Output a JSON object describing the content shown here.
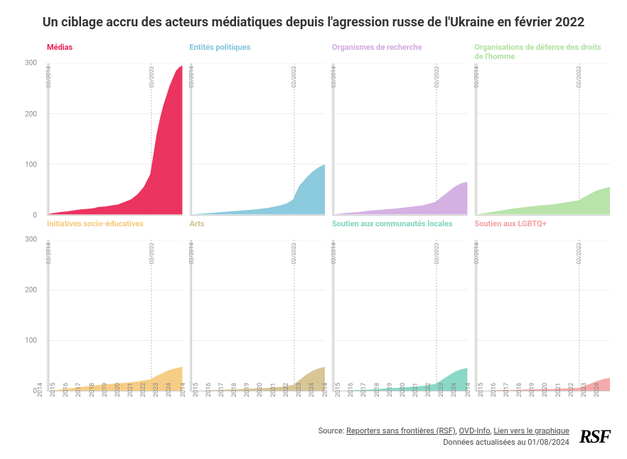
{
  "title": "Un ciblage accru des acteurs médiatiques depuis l'agression russe de l'Ukraine en février 2022",
  "layout": {
    "cols": 4,
    "rows": 2
  },
  "y": {
    "min": 0,
    "max": 300,
    "ticks": [
      0,
      100,
      200,
      300
    ]
  },
  "x": {
    "years": [
      2014,
      2015,
      2016,
      2017,
      2018,
      2019,
      2020,
      2021,
      2022,
      2023,
      2024
    ],
    "min": 2014,
    "max": 2024.5
  },
  "event_lines": [
    {
      "x": 2014.083,
      "label": "02/2014",
      "style": "solid"
    },
    {
      "x": 2022.083,
      "label": "02/2022",
      "style": "dashed"
    }
  ],
  "panels": [
    {
      "id": "medias",
      "title": "Médias",
      "color": "#e91e4e",
      "points": [
        [
          2014,
          0
        ],
        [
          2014.25,
          2
        ],
        [
          2014.5,
          3
        ],
        [
          2014.75,
          4
        ],
        [
          2015,
          5
        ],
        [
          2015.5,
          6
        ],
        [
          2016,
          8
        ],
        [
          2016.5,
          10
        ],
        [
          2017,
          11
        ],
        [
          2017.5,
          12
        ],
        [
          2018,
          15
        ],
        [
          2018.5,
          16
        ],
        [
          2019,
          18
        ],
        [
          2019.5,
          20
        ],
        [
          2020,
          25
        ],
        [
          2020.5,
          30
        ],
        [
          2021,
          40
        ],
        [
          2021.5,
          55
        ],
        [
          2022,
          80
        ],
        [
          2022.25,
          120
        ],
        [
          2022.5,
          160
        ],
        [
          2022.75,
          190
        ],
        [
          2023,
          215
        ],
        [
          2023.25,
          235
        ],
        [
          2023.5,
          255
        ],
        [
          2023.75,
          270
        ],
        [
          2024,
          285
        ],
        [
          2024.25,
          292
        ],
        [
          2024.5,
          296
        ]
      ]
    },
    {
      "id": "entites-politiques",
      "title": "Entités politiques",
      "color": "#7fc4d9",
      "points": [
        [
          2014,
          0
        ],
        [
          2015,
          2
        ],
        [
          2016,
          4
        ],
        [
          2017,
          6
        ],
        [
          2018,
          8
        ],
        [
          2019,
          10
        ],
        [
          2020,
          13
        ],
        [
          2021,
          18
        ],
        [
          2021.5,
          22
        ],
        [
          2022,
          30
        ],
        [
          2022.25,
          45
        ],
        [
          2022.5,
          58
        ],
        [
          2023,
          72
        ],
        [
          2023.5,
          85
        ],
        [
          2024,
          94
        ],
        [
          2024.5,
          100
        ]
      ]
    },
    {
      "id": "recherche",
      "title": "Organismes de recherche",
      "color": "#d0a8e0",
      "points": [
        [
          2014,
          0
        ],
        [
          2015,
          3
        ],
        [
          2016,
          5
        ],
        [
          2017,
          8
        ],
        [
          2018,
          10
        ],
        [
          2019,
          12
        ],
        [
          2020,
          15
        ],
        [
          2021,
          18
        ],
        [
          2022,
          25
        ],
        [
          2022.5,
          35
        ],
        [
          2023,
          45
        ],
        [
          2023.5,
          55
        ],
        [
          2024,
          62
        ],
        [
          2024.5,
          65
        ]
      ]
    },
    {
      "id": "droits-homme",
      "title": "Organisations de défense des droits de l'homme",
      "color": "#b0e0a0",
      "points": [
        [
          2014,
          0
        ],
        [
          2015,
          4
        ],
        [
          2016,
          8
        ],
        [
          2017,
          12
        ],
        [
          2018,
          15
        ],
        [
          2019,
          18
        ],
        [
          2020,
          20
        ],
        [
          2021,
          24
        ],
        [
          2022,
          28
        ],
        [
          2022.5,
          35
        ],
        [
          2023,
          42
        ],
        [
          2023.5,
          48
        ],
        [
          2024,
          52
        ],
        [
          2024.5,
          55
        ]
      ]
    },
    {
      "id": "socio-educ",
      "title": "Initiatives socio-éducatives",
      "color": "#f5c878",
      "points": [
        [
          2014,
          0
        ],
        [
          2015,
          3
        ],
        [
          2016,
          6
        ],
        [
          2017,
          9
        ],
        [
          2018,
          12
        ],
        [
          2019,
          14
        ],
        [
          2020,
          16
        ],
        [
          2021,
          19
        ],
        [
          2022,
          23
        ],
        [
          2022.5,
          30
        ],
        [
          2023,
          36
        ],
        [
          2023.5,
          42
        ],
        [
          2024,
          45
        ],
        [
          2024.5,
          48
        ]
      ]
    },
    {
      "id": "arts",
      "title": "Arts",
      "color": "#d4c08a",
      "points": [
        [
          2014,
          0
        ],
        [
          2015,
          1
        ],
        [
          2016,
          2
        ],
        [
          2017,
          3
        ],
        [
          2018,
          4
        ],
        [
          2019,
          5
        ],
        [
          2020,
          6
        ],
        [
          2021,
          8
        ],
        [
          2022,
          12
        ],
        [
          2022.5,
          22
        ],
        [
          2023,
          32
        ],
        [
          2023.5,
          40
        ],
        [
          2024,
          45
        ],
        [
          2024.5,
          48
        ]
      ]
    },
    {
      "id": "communautes",
      "title": "Soutien aux communautés locales",
      "color": "#7dd4c0",
      "points": [
        [
          2014,
          0
        ],
        [
          2015,
          1
        ],
        [
          2016,
          2
        ],
        [
          2017,
          3
        ],
        [
          2018,
          5
        ],
        [
          2019,
          6
        ],
        [
          2020,
          8
        ],
        [
          2021,
          10
        ],
        [
          2022,
          14
        ],
        [
          2022.5,
          22
        ],
        [
          2023,
          30
        ],
        [
          2023.5,
          38
        ],
        [
          2024,
          43
        ],
        [
          2024.5,
          46
        ]
      ]
    },
    {
      "id": "lgbtq",
      "title": "Soutien aux LGBTQ+",
      "color": "#f4a0a0",
      "points": [
        [
          2014,
          0
        ],
        [
          2015,
          1
        ],
        [
          2016,
          2
        ],
        [
          2017,
          2
        ],
        [
          2018,
          3
        ],
        [
          2019,
          4
        ],
        [
          2020,
          4
        ],
        [
          2021,
          5
        ],
        [
          2022,
          6
        ],
        [
          2022.5,
          10
        ],
        [
          2023,
          15
        ],
        [
          2023.5,
          20
        ],
        [
          2024,
          24
        ],
        [
          2024.5,
          26
        ]
      ]
    }
  ],
  "footer": {
    "source_label": "Source:",
    "links": [
      {
        "text": "Reporters sans frontières (RSF)"
      },
      {
        "text": "OVD-Info"
      },
      {
        "text": "Lien vers le graphique"
      }
    ],
    "updated": "Données actualisées au 01/08/2024",
    "logo": "RSF"
  },
  "style": {
    "background": "#ffffff",
    "title_color": "#333333",
    "title_fontsize": 18,
    "panel_title_fontsize": 11,
    "axis_color": "#cccccc",
    "tick_color": "#888888",
    "tick_fontsize": 10,
    "xtick_fontsize": 9,
    "gridline_color": "#eeeeee",
    "eventline_color": "#bbbbbb",
    "eventlabel_color": "#999999",
    "eventlabel_fontsize": 8
  }
}
